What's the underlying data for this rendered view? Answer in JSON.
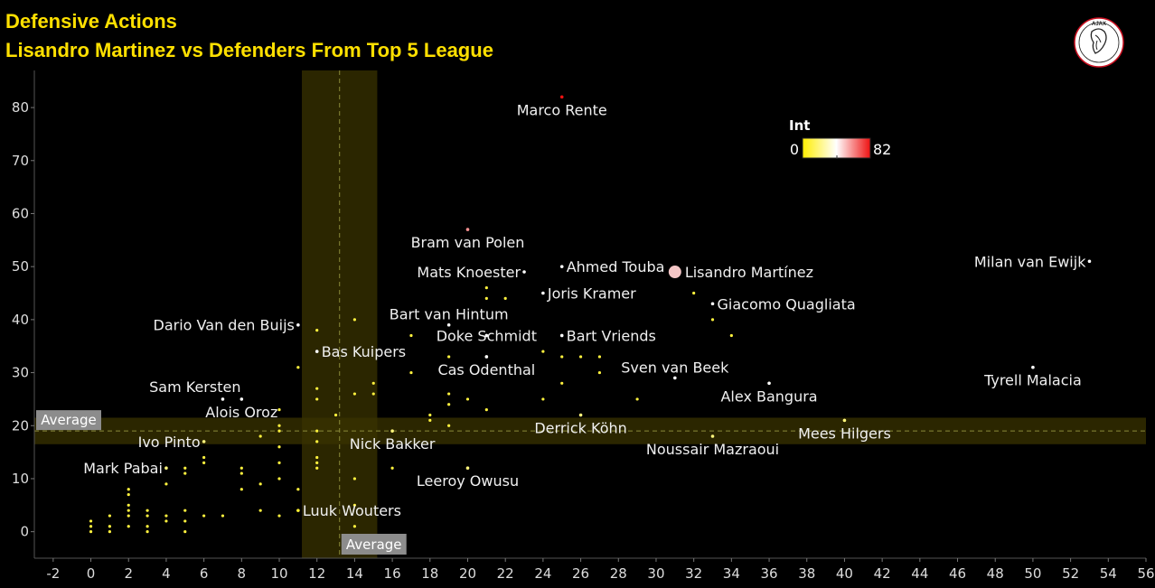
{
  "title": "Defensive Actions",
  "subtitle": "Lisandro Martinez vs Defenders From Top 5 League",
  "logo_text": "AJAX",
  "chart_data": {
    "type": "scatter",
    "xlim": [
      -3,
      56
    ],
    "ylim": [
      -5,
      87
    ],
    "x_ticks": [
      -2,
      0,
      2,
      4,
      6,
      8,
      10,
      12,
      14,
      16,
      18,
      20,
      22,
      24,
      26,
      28,
      30,
      32,
      34,
      36,
      38,
      40,
      42,
      44,
      46,
      48,
      50,
      52,
      54,
      56
    ],
    "y_ticks": [
      0,
      10,
      20,
      30,
      40,
      50,
      60,
      70,
      80
    ],
    "average": {
      "x": 13.2,
      "y": 19,
      "label": "Average"
    },
    "band": {
      "x_range": [
        11.2,
        15.2
      ],
      "y_range": [
        16.5,
        21.5
      ]
    },
    "legend": {
      "title": "Int",
      "min": 0,
      "max": 82,
      "colors": [
        "#ffee00",
        "#ffffff",
        "#ee1111"
      ]
    },
    "highlight": "Lisandro Martínez",
    "labeled_points": [
      {
        "name": "Marco Rente",
        "x": 25,
        "y": 82,
        "int": 82,
        "anchor": "below"
      },
      {
        "name": "Bram van Polen",
        "x": 20,
        "y": 57,
        "int": 60,
        "anchor": "below"
      },
      {
        "name": "Mats Knoester",
        "x": 23,
        "y": 49,
        "int": 41,
        "anchor": "left"
      },
      {
        "name": "Ahmed Touba",
        "x": 25,
        "y": 50,
        "int": 41,
        "anchor": "right"
      },
      {
        "name": "Lisandro Martínez",
        "x": 31,
        "y": 49,
        "int": 41,
        "anchor": "right"
      },
      {
        "name": "Milan van Ewijk",
        "x": 53,
        "y": 51,
        "int": 41,
        "anchor": "left"
      },
      {
        "name": "Joris Kramer",
        "x": 24,
        "y": 45,
        "int": 41,
        "anchor": "right"
      },
      {
        "name": "Giacomo Quagliata",
        "x": 33,
        "y": 43,
        "int": 41,
        "anchor": "right"
      },
      {
        "name": "Bart van Hintum",
        "x": 19,
        "y": 39,
        "int": 41,
        "anchor": "above"
      },
      {
        "name": "Dario Van den Buijs",
        "x": 11,
        "y": 39,
        "int": 41,
        "anchor": "left"
      },
      {
        "name": "Doke Schmidt",
        "x": 21,
        "y": 37,
        "int": 41,
        "anchor": "center"
      },
      {
        "name": "Bart Vriends",
        "x": 25,
        "y": 37,
        "int": 41,
        "anchor": "right"
      },
      {
        "name": "Bas Kuipers",
        "x": 12,
        "y": 34,
        "int": 41,
        "anchor": "right"
      },
      {
        "name": "Sven van Beek",
        "x": 31,
        "y": 29,
        "int": 41,
        "anchor": "above"
      },
      {
        "name": "Tyrell Malacia",
        "x": 50,
        "y": 31,
        "int": 41,
        "anchor": "below"
      },
      {
        "name": "Cas Odenthal",
        "x": 21,
        "y": 33,
        "int": 41,
        "anchor": "below"
      },
      {
        "name": "Sam Kersten",
        "x": 7,
        "y": 25,
        "int": 41,
        "anchor": "left-above"
      },
      {
        "name": "Alex Bangura",
        "x": 36,
        "y": 28,
        "int": 41,
        "anchor": "below"
      },
      {
        "name": "Alois Oroz",
        "x": 8,
        "y": 25,
        "int": 41,
        "anchor": "below"
      },
      {
        "name": "Derrick Köhn",
        "x": 26,
        "y": 22,
        "int": 20,
        "anchor": "below"
      },
      {
        "name": "Mees Hilgers",
        "x": 40,
        "y": 21,
        "int": 20,
        "anchor": "below"
      },
      {
        "name": "Ivo Pinto",
        "x": 6,
        "y": 17,
        "int": 20,
        "anchor": "left"
      },
      {
        "name": "Nick Bakker",
        "x": 16,
        "y": 19,
        "int": 20,
        "anchor": "below"
      },
      {
        "name": "Noussair Mazraoui",
        "x": 33,
        "y": 18,
        "int": 20,
        "anchor": "below"
      },
      {
        "name": "Mark Pabai",
        "x": 4,
        "y": 12,
        "int": 20,
        "anchor": "left"
      },
      {
        "name": "Leeroy Owusu",
        "x": 20,
        "y": 12,
        "int": 20,
        "anchor": "below"
      },
      {
        "name": "Luuk Wouters",
        "x": 11,
        "y": 4,
        "int": 8,
        "anchor": "right"
      }
    ],
    "other_points": [
      [
        0,
        0
      ],
      [
        0,
        1
      ],
      [
        0,
        2
      ],
      [
        1,
        0
      ],
      [
        1,
        1
      ],
      [
        1,
        3
      ],
      [
        2,
        1
      ],
      [
        2,
        3
      ],
      [
        2,
        4
      ],
      [
        2,
        5
      ],
      [
        2,
        7
      ],
      [
        2,
        8
      ],
      [
        3,
        0
      ],
      [
        3,
        1
      ],
      [
        3,
        3
      ],
      [
        3,
        4
      ],
      [
        4,
        2
      ],
      [
        4,
        3
      ],
      [
        4,
        9
      ],
      [
        5,
        0
      ],
      [
        5,
        2
      ],
      [
        5,
        4
      ],
      [
        5,
        11
      ],
      [
        5,
        12
      ],
      [
        6,
        3
      ],
      [
        6,
        13
      ],
      [
        6,
        14
      ],
      [
        7,
        3
      ],
      [
        8,
        8
      ],
      [
        8,
        11
      ],
      [
        8,
        12
      ],
      [
        9,
        4
      ],
      [
        9,
        9
      ],
      [
        9,
        18
      ],
      [
        10,
        3
      ],
      [
        10,
        10
      ],
      [
        10,
        13
      ],
      [
        10,
        16
      ],
      [
        10,
        19
      ],
      [
        10,
        20
      ],
      [
        10,
        23
      ],
      [
        11,
        8
      ],
      [
        11,
        31
      ],
      [
        12,
        12
      ],
      [
        12,
        13
      ],
      [
        12,
        14
      ],
      [
        12,
        17
      ],
      [
        12,
        19
      ],
      [
        12,
        25
      ],
      [
        12,
        27
      ],
      [
        12,
        38
      ],
      [
        13,
        22
      ],
      [
        14,
        1
      ],
      [
        14,
        5
      ],
      [
        14,
        10
      ],
      [
        14,
        26
      ],
      [
        14,
        40
      ],
      [
        15,
        26
      ],
      [
        15,
        28
      ],
      [
        16,
        12
      ],
      [
        16,
        19
      ],
      [
        17,
        30
      ],
      [
        17,
        37
      ],
      [
        18,
        21
      ],
      [
        18,
        22
      ],
      [
        19,
        20
      ],
      [
        19,
        24
      ],
      [
        19,
        26
      ],
      [
        19,
        33
      ],
      [
        20,
        25
      ],
      [
        21,
        23
      ],
      [
        21,
        33
      ],
      [
        21,
        44
      ],
      [
        21,
        46
      ],
      [
        22,
        44
      ],
      [
        24,
        25
      ],
      [
        24,
        34
      ],
      [
        25,
        28
      ],
      [
        25,
        33
      ],
      [
        26,
        33
      ],
      [
        27,
        30
      ],
      [
        27,
        33
      ],
      [
        29,
        25
      ],
      [
        32,
        45
      ],
      [
        33,
        40
      ],
      [
        34,
        37
      ],
      [
        36,
        28
      ],
      [
        40,
        21
      ]
    ]
  }
}
